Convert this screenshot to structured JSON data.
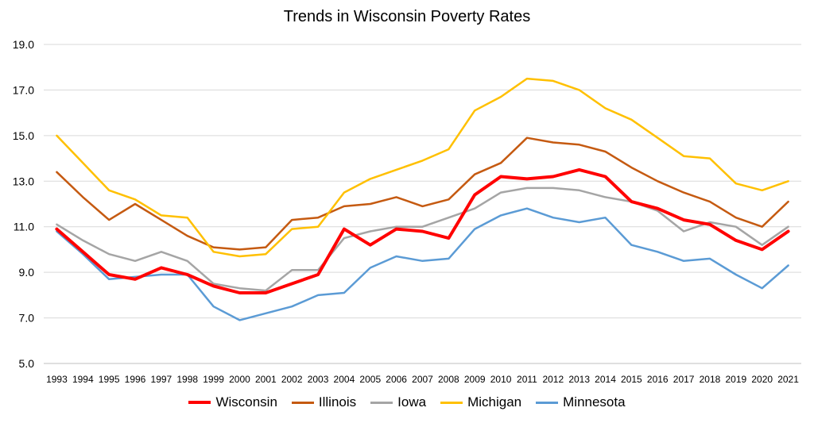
{
  "chart_data": {
    "type": "line",
    "title": "Trends in Wisconsin Poverty Rates",
    "xlabel": "",
    "ylabel": "",
    "ylim": [
      5.0,
      19.0
    ],
    "yticks": [
      "5.0",
      "7.0",
      "9.0",
      "11.0",
      "13.0",
      "15.0",
      "17.0",
      "19.0"
    ],
    "grid": true,
    "legend_position": "bottom",
    "categories": [
      "1993",
      "1994",
      "1995",
      "1996",
      "1997",
      "1998",
      "1999",
      "2000",
      "2001",
      "2002",
      "2003",
      "2004",
      "2005",
      "2006",
      "2007",
      "2008",
      "2009",
      "2010",
      "2011",
      "2012",
      "2013",
      "2014",
      "2015",
      "2016",
      "2017",
      "2018",
      "2019",
      "2020",
      "2021"
    ],
    "series": [
      {
        "name": "Wisconsin",
        "color": "#ff0000",
        "emphasis": true,
        "values": [
          10.9,
          9.9,
          8.9,
          8.7,
          9.2,
          8.9,
          8.4,
          8.1,
          8.1,
          8.5,
          8.9,
          10.9,
          10.2,
          10.9,
          10.8,
          10.5,
          12.4,
          13.2,
          13.1,
          13.2,
          13.5,
          13.2,
          12.1,
          11.8,
          11.3,
          11.1,
          10.4,
          10.0,
          10.8
        ]
      },
      {
        "name": "Illinois",
        "color": "#c55a11",
        "values": [
          13.4,
          12.3,
          11.3,
          12.0,
          11.3,
          10.6,
          10.1,
          10.0,
          10.1,
          11.3,
          11.4,
          11.9,
          12.0,
          12.3,
          11.9,
          12.2,
          13.3,
          13.8,
          14.9,
          14.7,
          14.6,
          14.3,
          13.6,
          13.0,
          12.5,
          12.1,
          11.4,
          11.0,
          12.1
        ]
      },
      {
        "name": "Iowa",
        "color": "#a5a5a5",
        "values": [
          11.1,
          10.4,
          9.8,
          9.5,
          9.9,
          9.5,
          8.5,
          8.3,
          8.2,
          9.1,
          9.1,
          10.5,
          10.8,
          11.0,
          11.0,
          11.4,
          11.8,
          12.5,
          12.7,
          12.7,
          12.6,
          12.3,
          12.1,
          11.7,
          10.8,
          11.2,
          11.0,
          10.2,
          11.0
        ]
      },
      {
        "name": "Michigan",
        "color": "#ffc000",
        "values": [
          15.0,
          13.8,
          12.6,
          12.2,
          11.5,
          11.4,
          9.9,
          9.7,
          9.8,
          10.9,
          11.0,
          12.5,
          13.1,
          13.5,
          13.9,
          14.4,
          16.1,
          16.7,
          17.5,
          17.4,
          17.0,
          16.2,
          15.7,
          14.9,
          14.1,
          14.0,
          12.9,
          12.6,
          13.0
        ]
      },
      {
        "name": "Minnesota",
        "color": "#5b9bd5",
        "values": [
          10.8,
          9.8,
          8.7,
          8.8,
          8.9,
          8.9,
          7.5,
          6.9,
          7.2,
          7.5,
          8.0,
          8.1,
          9.2,
          9.7,
          9.5,
          9.6,
          10.9,
          11.5,
          11.8,
          11.4,
          11.2,
          11.4,
          10.2,
          9.9,
          9.5,
          9.6,
          8.9,
          8.3,
          9.3
        ]
      }
    ]
  }
}
